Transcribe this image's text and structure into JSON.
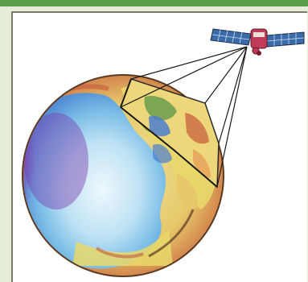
{
  "illustration": {
    "subject": "satellite-imaging-earth",
    "colors": {
      "frame_green": "#5aa04a",
      "frame_bg": "#e6edda",
      "ocean_light": "#d9eef8",
      "ocean_mid": "#7fc4ea",
      "ocean_deep": "#4b7fd0",
      "violet": "#7b3fb0",
      "land_yellow": "#e9d86a",
      "land_red": "#c65a3a",
      "land_green": "#5f9a4a",
      "rim_brown": "#5a3b22",
      "panel_blue": "#3a6aa8",
      "satellite_red": "#c23a5a"
    }
  }
}
